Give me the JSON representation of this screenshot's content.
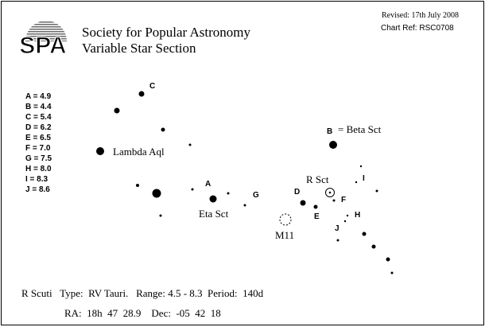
{
  "logo_text": "SPA",
  "header": {
    "line1": "Society for Popular Astronomy",
    "line2": "Variable Star Section",
    "revised": "Revised: 17th July 2008",
    "chart_ref": "Chart Ref: RSC0708"
  },
  "legend": [
    "A = 4.9",
    "B = 4.4",
    "C = 5.4",
    "D = 6.2",
    "E = 6.5",
    "F = 7.0",
    "G = 7.5",
    "H = 8.0",
    "I = 8.3",
    "J = 8.6"
  ],
  "map_labels": {
    "lambda": "Lambda Aql",
    "eta": "Eta Sct",
    "beta": "= Beta Sct",
    "rsct": "R Sct",
    "m11": "M11",
    "a": "A",
    "b": "B",
    "c": "C",
    "d": "D",
    "e": "E",
    "f": "F",
    "g": "G",
    "h": "H",
    "i": "I",
    "j": "J"
  },
  "info": {
    "line1": "R Scuti   Type:  RV Tauri.   Range: 4.5 - 8.3  Period:  140d",
    "line2": "RA:  18h  47  28.9    Dec:  -05  42  18"
  }
}
